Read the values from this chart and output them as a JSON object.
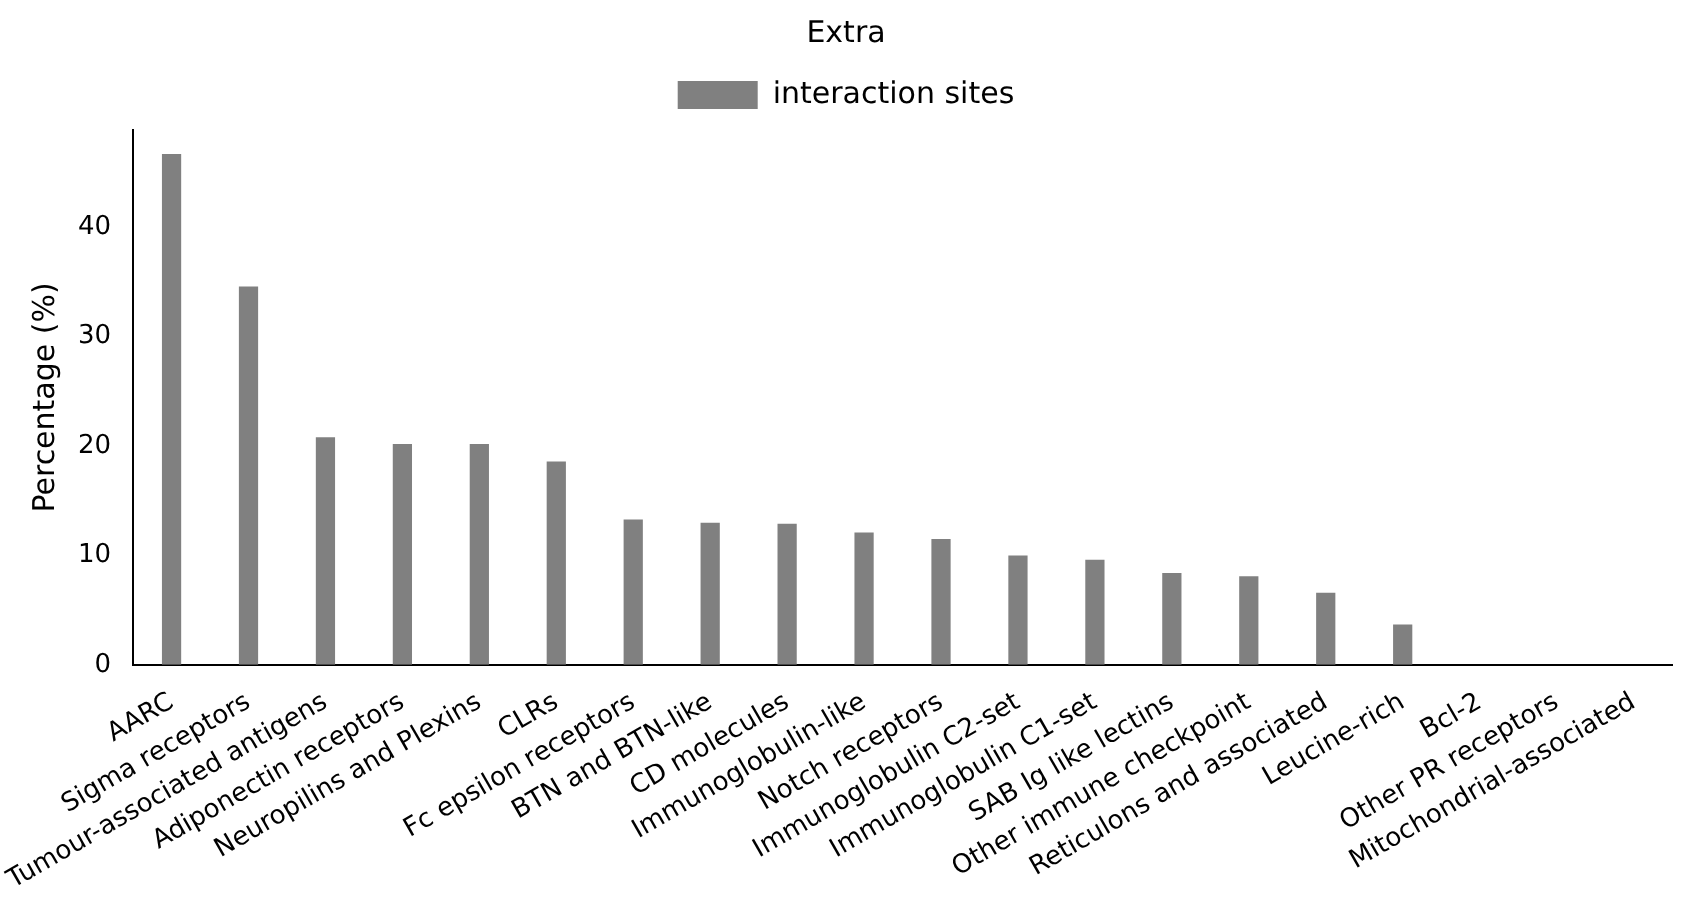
{
  "chart_data": {
    "type": "bar",
    "title": "Extra",
    "ylabel": "Percentage (%)",
    "categories": [
      "AARC",
      "Sigma receptors",
      "Tumour-associated antigens",
      "Adiponectin receptors",
      "Neuropilins and Plexins",
      "CLRs",
      "Fc epsilon receptors",
      "BTN and BTN-like",
      "CD molecules",
      "Immunoglobulin-like",
      "Notch receptors",
      "Immunoglobulin C2-set",
      "Immunoglobulin C1-set",
      "SAB Ig like lectins",
      "Other immune checkpoint",
      "Reticulons and associated",
      "Leucine-rich",
      "Bcl-2",
      "Other PR receptors",
      "Mitochondrial-associated"
    ],
    "series": [
      {
        "name": "interaction sites",
        "color": "#808080",
        "values": [
          46.7,
          34.6,
          20.8,
          20.2,
          20.2,
          18.6,
          13.3,
          13.0,
          12.9,
          12.1,
          11.5,
          10.0,
          9.6,
          8.4,
          8.1,
          6.6,
          3.7,
          0,
          0,
          0
        ]
      }
    ],
    "ylim": [
      0,
      48.9
    ],
    "yticks": [
      0,
      10,
      20,
      30,
      40
    ],
    "grid": false,
    "legend": "top"
  }
}
